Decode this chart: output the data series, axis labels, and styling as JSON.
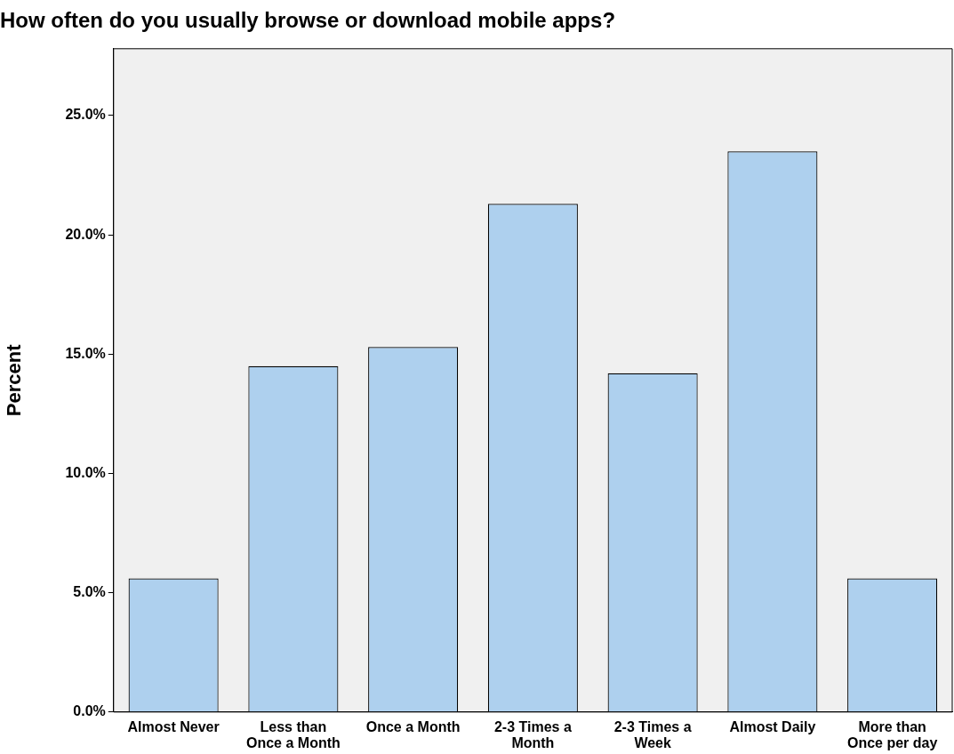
{
  "chart_data": {
    "type": "bar",
    "title": "How often do you usually browse or download mobile apps?",
    "ylabel": "Percent",
    "categories": [
      "Almost Never",
      "Less than Once a Month",
      "Once a Month",
      "2-3 Times a Month",
      "2-3 Times a Week",
      "Almost Daily",
      "More than Once per day"
    ],
    "values": [
      5.6,
      14.5,
      15.3,
      21.3,
      14.2,
      23.5,
      5.6
    ],
    "color": "#aed0ee",
    "ylim": [
      0,
      27.8
    ],
    "yticks": [
      {
        "value": 0,
        "label": "0.0%"
      },
      {
        "value": 5,
        "label": "5.0%"
      },
      {
        "value": 10,
        "label": "10.0%"
      },
      {
        "value": 15,
        "label": "15.0%"
      },
      {
        "value": 20,
        "label": "20.0%"
      },
      {
        "value": 25,
        "label": "25.0%"
      }
    ],
    "grid": false,
    "legend": false
  }
}
